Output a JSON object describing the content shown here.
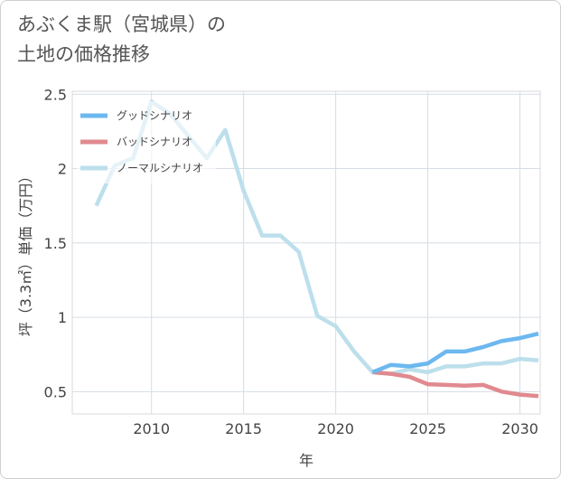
{
  "page": {
    "title_line1": "あぶくま駅（宮城県）の",
    "title_line2": "土地の価格推移"
  },
  "chart_data": {
    "type": "line",
    "title": "あぶくま駅（宮城県）の土地の価格推移",
    "xlabel": "年",
    "ylabel": "坪（3.3㎡）単価（万円）",
    "xlim": [
      2005.7,
      2031.1
    ],
    "ylim": [
      0.35,
      2.52
    ],
    "xticks": [
      2010,
      2015,
      2020,
      2025,
      2030
    ],
    "yticks": [
      0.5,
      1,
      1.5,
      2,
      2.5
    ],
    "ytick_labels": [
      "0.5",
      "1",
      "1.5",
      "2",
      "2.5"
    ],
    "grid": true,
    "legend_position": "top-left",
    "series": [
      {
        "name": "グッドシナリオ",
        "color": "#6cb8ef",
        "x": [
          2022,
          2023,
          2024,
          2025,
          2026,
          2027,
          2028,
          2029,
          2030,
          2031
        ],
        "y": [
          0.63,
          0.68,
          0.67,
          0.69,
          0.77,
          0.77,
          0.8,
          0.84,
          0.86,
          0.89
        ]
      },
      {
        "name": "バッドシナリオ",
        "color": "#e08a8f",
        "x": [
          2022,
          2023,
          2024,
          2025,
          2026,
          2027,
          2028,
          2029,
          2030,
          2031
        ],
        "y": [
          0.63,
          0.62,
          0.6,
          0.55,
          0.545,
          0.54,
          0.545,
          0.5,
          0.48,
          0.47
        ]
      },
      {
        "name": "ノーマルシナリオ",
        "color": "#bddfec",
        "x": [
          2007,
          2008,
          2009,
          2010,
          2011,
          2012,
          2013,
          2014,
          2015,
          2016,
          2017,
          2018,
          2019,
          2020,
          2021,
          2022,
          2023,
          2024,
          2025,
          2026,
          2027,
          2028,
          2029,
          2030,
          2031
        ],
        "y": [
          1.75,
          2.02,
          2.07,
          2.45,
          2.37,
          2.22,
          2.07,
          2.26,
          1.85,
          1.55,
          1.55,
          1.44,
          1.01,
          0.94,
          0.77,
          0.63,
          0.62,
          0.65,
          0.63,
          0.67,
          0.67,
          0.69,
          0.69,
          0.72,
          0.71
        ]
      }
    ]
  }
}
